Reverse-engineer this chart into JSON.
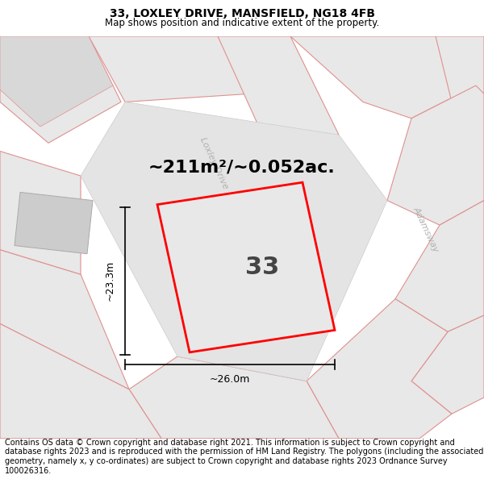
{
  "title": "33, LOXLEY DRIVE, MANSFIELD, NG18 4FB",
  "subtitle": "Map shows position and indicative extent of the property.",
  "footer": "Contains OS data © Crown copyright and database right 2021. This information is subject to Crown copyright and database rights 2023 and is reproduced with the permission of HM Land Registry. The polygons (including the associated geometry, namely x, y co-ordinates) are subject to Crown copyright and database rights 2023 Ordnance Survey 100026316.",
  "area_text": "~211m²/~0.052ac.",
  "width_label": "~26.0m",
  "height_label": "~23.3m",
  "plot_number": "33",
  "bg_color": "#ffffff",
  "block_fill": "#e8e8e8",
  "block_edge": "#e09090",
  "dark_block_fill": "#d8d8d8",
  "plot_fill": "#e0e0e0",
  "plot_stroke": "#ff0000",
  "building_fill": "#cccccc",
  "building_edge": "#aaaaaa",
  "street_label_color": "#b0b0b0",
  "dim_color": "#000000",
  "title_fontsize": 10,
  "subtitle_fontsize": 8.5,
  "footer_fontsize": 7,
  "area_fontsize": 16,
  "number_fontsize": 22,
  "dim_fontsize": 9,
  "street_fontsize": 8
}
